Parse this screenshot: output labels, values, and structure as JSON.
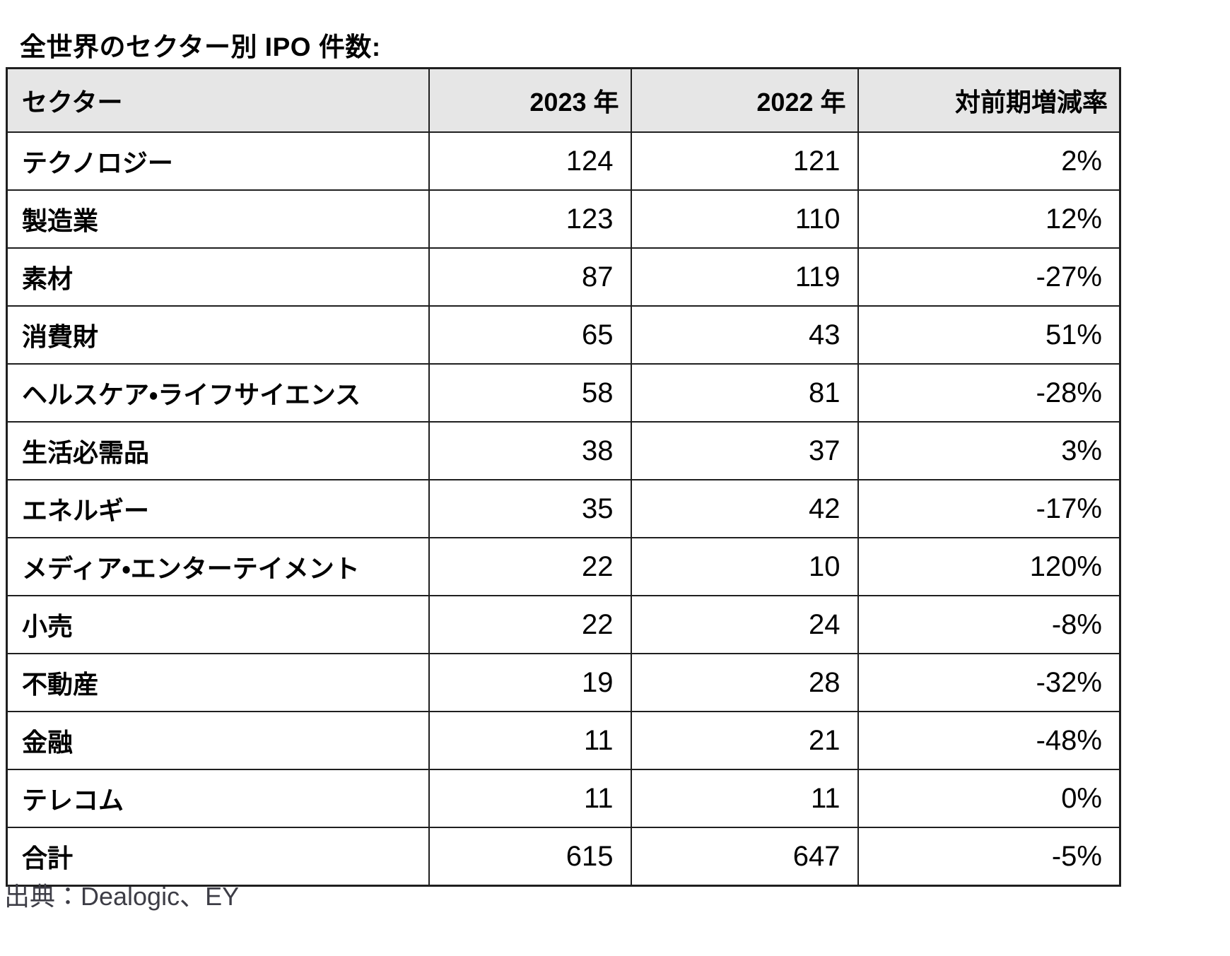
{
  "page": {
    "title": "全世界のセクター別 IPO 件数:",
    "source": "出典：Dealogic、EY"
  },
  "chart_data": {
    "type": "table",
    "title": "全世界のセクター別 IPO 件数",
    "columns": [
      "セクター",
      "2023 年",
      "2022 年",
      "対前期増減率"
    ],
    "rows": [
      [
        "テクノロジー",
        "124",
        "121",
        "2%"
      ],
      [
        "製造業",
        "123",
        "110",
        "12%"
      ],
      [
        "素材",
        "87",
        "119",
        "-27%"
      ],
      [
        "消費財",
        "65",
        "43",
        "51%"
      ],
      [
        "ヘルスケア・ライフサイエンス",
        "58",
        "81",
        "-28%"
      ],
      [
        "生活必需品",
        "38",
        "37",
        "3%"
      ],
      [
        "エネルギー",
        "35",
        "42",
        "-17%"
      ],
      [
        "メディア・エンターテイメント",
        "22",
        "10",
        "120%"
      ],
      [
        "小売",
        "22",
        "24",
        "-8%"
      ],
      [
        "不動産",
        "19",
        "28",
        "-32%"
      ],
      [
        "金融",
        "11",
        "21",
        "-48%"
      ],
      [
        "テレコム",
        "11",
        "11",
        "0%"
      ],
      [
        "合計",
        "615",
        "647",
        "-5%"
      ]
    ],
    "totals_row_label": "合計",
    "source": "出典：Dealogic、EY",
    "legend_position": "none",
    "grid": "all-borders"
  },
  "colors": {
    "header_bg": "#e6e6e6",
    "border": "#1f1f1f",
    "text": "#000000",
    "source_text": "#3d3d46"
  }
}
